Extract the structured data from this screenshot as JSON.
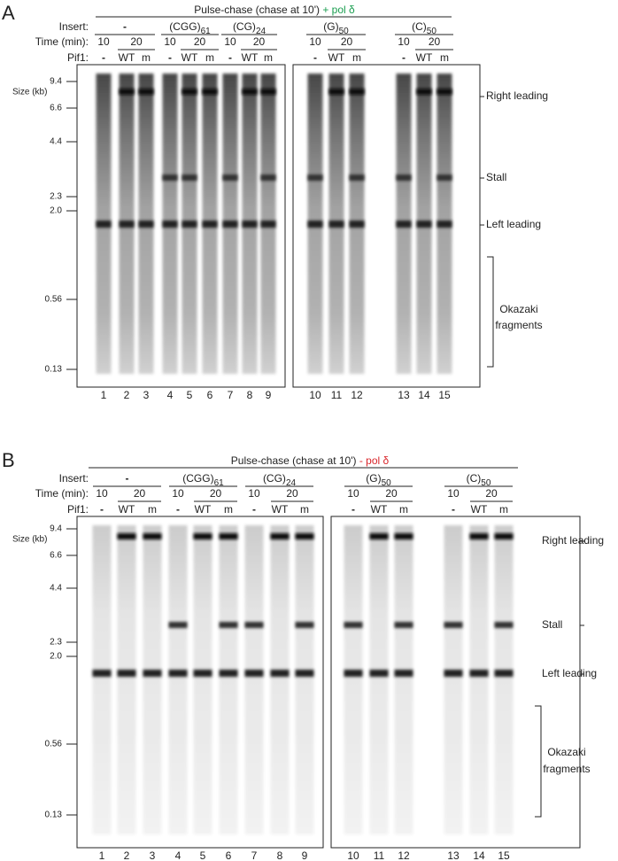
{
  "panels": [
    {
      "label": "A",
      "title": "Pulse-chase (chase at 10')",
      "condition": "+ pol δ",
      "condition_color": "#1a9e50",
      "row_labels": {
        "insert": "Insert:",
        "time": "Time (min):",
        "pif1": "Pif1:"
      },
      "inserts": [
        {
          "text": "-"
        },
        {
          "text": "(CGG)",
          "sub": "61"
        },
        {
          "text": "(CG)",
          "sub": "24"
        },
        {
          "text": "(G)",
          "sub": "50"
        },
        {
          "text": "(C)",
          "sub": "50"
        }
      ],
      "time": [
        "10",
        "20"
      ],
      "pif1": [
        "-",
        "WT",
        "m"
      ],
      "size_unit": "Size (kb)",
      "sizes": [
        "9.4",
        "6.6",
        "4.4",
        "2.3",
        "2.0",
        "0.56",
        "0.13"
      ],
      "bands": [
        "Right leading",
        "Stall",
        "Left leading"
      ],
      "okazaki": [
        "Okazaki",
        "fragments"
      ],
      "lanes": [
        "1",
        "2",
        "3",
        "4",
        "5",
        "6",
        "7",
        "8",
        "9",
        "10",
        "11",
        "12",
        "13",
        "14",
        "15"
      ]
    },
    {
      "label": "B",
      "title": "Pulse-chase (chase at 10')",
      "condition": "- pol δ",
      "condition_color": "#d9262b",
      "row_labels": {
        "insert": "Insert:",
        "time": "Time (min):",
        "pif1": "Pif1:"
      },
      "inserts": [
        {
          "text": "-"
        },
        {
          "text": "(CGG)",
          "sub": "61"
        },
        {
          "text": "(CG)",
          "sub": "24"
        },
        {
          "text": "(G)",
          "sub": "50"
        },
        {
          "text": "(C)",
          "sub": "50"
        }
      ],
      "time": [
        "10",
        "20"
      ],
      "pif1": [
        "-",
        "WT",
        "m"
      ],
      "size_unit": "Size (kb)",
      "sizes": [
        "9.4",
        "6.6",
        "4.4",
        "2.3",
        "2.0",
        "0.56",
        "0.13"
      ],
      "bands": [
        "Right leading",
        "Stall",
        "Left leading"
      ],
      "okazaki": [
        "Okazaki",
        "fragments"
      ],
      "lanes": [
        "1",
        "2",
        "3",
        "4",
        "5",
        "6",
        "7",
        "8",
        "9",
        "10",
        "11",
        "12",
        "13",
        "14",
        "15"
      ]
    }
  ]
}
